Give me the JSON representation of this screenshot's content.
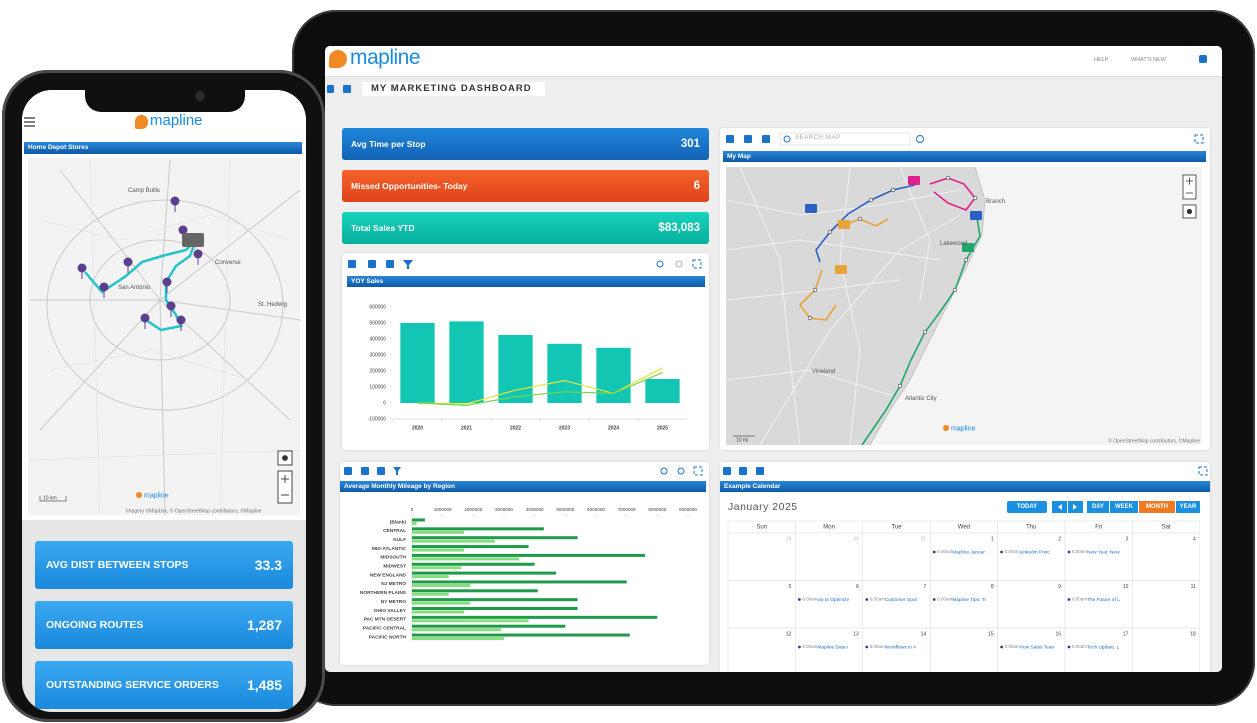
{
  "phone": {
    "logo": "mapline",
    "map": {
      "title": "Home Depot Stores",
      "labels": [
        "Camp Bullis",
        "San Antonio",
        "Converse",
        "St. Hedwig"
      ],
      "scale": "10 km",
      "watermark": "mapline",
      "attribution": "Imagery ©Mapbox, © OpenStreetMap contributors, ©Mapline"
    },
    "kpis": [
      {
        "label": "AVG DIST BETWEEN STOPS",
        "value": 33.3
      },
      {
        "label": "ONGOING ROUTES",
        "value": "1,287"
      },
      {
        "label": "OUTSTANDING SERVICE ORDERS",
        "value": "1,485"
      }
    ]
  },
  "tablet": {
    "logo": "mapline",
    "nav": [
      "HELP",
      "WHAT'S NEW"
    ],
    "title": "MY MARKETING DASHBOARD",
    "kpis": [
      {
        "label": "Avg Time per Stop",
        "value": 301
      },
      {
        "label": "Missed Opportunities- Today",
        "value": 6
      },
      {
        "label": "Total Sales YTD",
        "value": "$83,083"
      }
    ],
    "map": {
      "search": "SEARCH MAP",
      "title": "My Map",
      "labels": [
        "Branch",
        "Lakewood",
        "Vineland",
        "Atlantic City"
      ],
      "scale": "10 mi",
      "watermark": "mapline",
      "attribution": "© OpenStreetMap contributors, ©Mapline"
    },
    "calendar": {
      "title": "Example Calendar",
      "month": "January 2025",
      "buttons": [
        "TODAY",
        "DAY",
        "WEEK",
        "MONTH",
        "YEAR"
      ],
      "weekdays": [
        "Sun",
        "Mon",
        "Tue",
        "Wed",
        "Thu",
        "Fri",
        "Sat"
      ],
      "weeks": [
        [
          {
            "day": 29
          },
          {
            "day": 30
          },
          {
            "day": 31
          },
          {
            "day": 1,
            "time": "6:00am",
            "event": "Mapline Januar"
          },
          {
            "day": 2,
            "time": "6:00am",
            "event": "LinkedIn Post:"
          },
          {
            "day": 3,
            "time": "6:00am",
            "event": "New Year, New"
          },
          {
            "day": 4
          }
        ],
        [
          {
            "day": 5
          },
          {
            "day": 6,
            "time": "6:00am",
            "event": "ow to Optimize"
          },
          {
            "day": 7,
            "time": "6:00am",
            "event": "Customer Spot"
          },
          {
            "day": 8,
            "time": "6:00am",
            "event": "Mapline Tips: Tr"
          },
          {
            "day": 9
          },
          {
            "day": 10,
            "time": "6:00am",
            "event": "The Future of L"
          },
          {
            "day": 11
          }
        ],
        [
          {
            "day": 12
          },
          {
            "day": 13,
            "time": "6:00am",
            "event": "Mapline Data I"
          },
          {
            "day": 14,
            "time": "6:00am",
            "event": "Workflows in A"
          },
          {
            "day": 15
          },
          {
            "day": 16,
            "time": "6:00am",
            "event": "How Sales Tean"
          },
          {
            "day": 17,
            "time": "6:00am",
            "event": "Tech Update: L"
          },
          {
            "day": 18
          }
        ]
      ]
    }
  },
  "chart_data": [
    {
      "type": "bar",
      "title": "YOY Sales",
      "categories": [
        "2020",
        "2021",
        "2022",
        "2023",
        "2024",
        "2025"
      ],
      "series": [
        {
          "type": "bar",
          "color": "#12c6b3",
          "values": [
            500000,
            510000,
            425000,
            370000,
            345000,
            150000
          ]
        },
        {
          "type": "line",
          "color": "#e6e635",
          "values": [
            0,
            -5000,
            80000,
            140000,
            60000,
            220000
          ]
        },
        {
          "type": "line",
          "color": "#78d44e",
          "values": [
            0,
            -15000,
            40000,
            70000,
            60000,
            190000
          ]
        }
      ],
      "ylim": [
        -100000,
        600000
      ],
      "yticks": [
        -100000,
        0,
        100000,
        200000,
        300000,
        400000,
        500000,
        600000
      ]
    },
    {
      "type": "hbar",
      "title": "Average Monthly Mileage by Region",
      "categories": [
        "(Blank)",
        "CENTRAL",
        "GULF",
        "MID-ATLANTIC",
        "MIDSOUTH",
        "MIDWEST",
        "NEW ENGLAND",
        "NJ METRO",
        "NORTHERN PLAINS",
        "NY METRO",
        "OHIO VALLEY",
        "PAC MTN DESERT",
        "PACIFIC CENTRAL",
        "PACIFIC NORTH"
      ],
      "series": [
        {
          "color": "#1f9a4b",
          "values": [
            420000,
            4300000,
            5400000,
            3800000,
            7600000,
            4000000,
            4700000,
            7000000,
            4100000,
            5400000,
            5400000,
            8000000,
            5000000,
            7100000
          ]
        },
        {
          "color": "#86de7e",
          "values": [
            150000,
            1700000,
            2700000,
            1700000,
            3500000,
            1600000,
            1200000,
            1900000,
            1200000,
            1900000,
            1700000,
            3800000,
            2900000,
            3000000
          ]
        }
      ],
      "xlim": [
        0,
        9000000
      ],
      "xticks": [
        0,
        1000000,
        2000000,
        3000000,
        4000000,
        5000000,
        6000000,
        7000000,
        8000000,
        9000000
      ]
    }
  ]
}
